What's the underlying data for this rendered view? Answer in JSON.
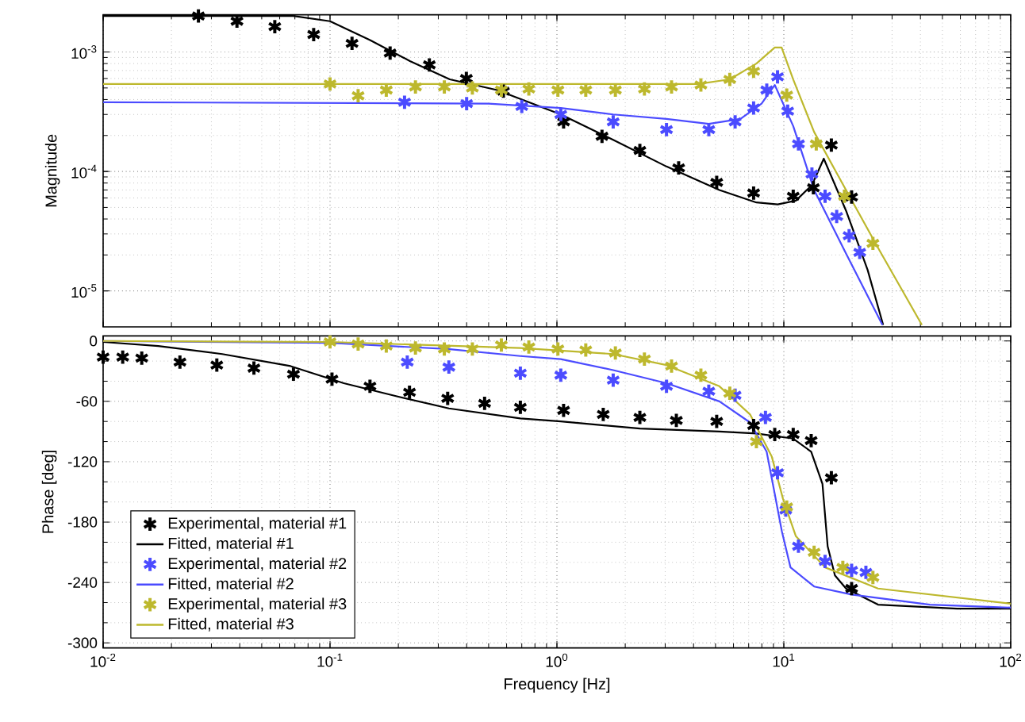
{
  "chart_data": [
    {
      "type": "line",
      "log": "xy",
      "xlim": [
        0.01,
        100
      ],
      "xticks": [
        {
          "value": 0.01,
          "label": null
        },
        {
          "value": 0.1,
          "label": null
        },
        {
          "value": 1,
          "label": null
        },
        {
          "value": 10,
          "label": null
        },
        {
          "value": 100,
          "label": null
        }
      ],
      "ylim": [
        5e-06,
        0.00205
      ],
      "yticks": [
        {
          "value": 1e-05,
          "label": "10$^{-5}$"
        },
        {
          "value": 0.0001,
          "label": "10$^{-4}$"
        },
        {
          "value": 0.001,
          "label": "10$^{-3}$"
        }
      ],
      "ylabel": "Magnitude",
      "grid": true,
      "tick_labels": "y",
      "line_style": "solid",
      "series": [
        {
          "type": "scatter",
          "marker": "cross",
          "color": "#000000",
          "x": [
            0.0263,
            0.0389,
            0.0571,
            0.0847,
            0.125,
            0.184,
            0.274,
            0.399,
            0.581,
            1.07,
            1.58,
            2.32,
            3.44,
            5.06,
            7.36,
            11.0,
            13.5,
            16.2,
            19.9
          ],
          "values": [
            0.002,
            0.00181,
            0.00163,
            0.0014,
            0.00118,
            0.00098,
            0.00078,
            0.0006,
            0.00047,
            0.00026,
            0.000197,
            0.00015,
            0.000107,
            8.1e-05,
            6.6e-05,
            6.2e-05,
            7.3e-05,
            0.000166,
            6.1e-05
          ]
        },
        {
          "type": "line",
          "marker": "none",
          "color": "#000000",
          "x": [
            0.01,
            0.069,
            0.1,
            0.15,
            0.225,
            0.337,
            0.545,
            1.04,
            1.77,
            3.04,
            5.2,
            7.57,
            9.4,
            11.3,
            13.3,
            15.0,
            18.8,
            23.4,
            27.4
          ],
          "values": [
            0.002,
            0.002,
            0.00181,
            0.00126,
            0.00084,
            0.00059,
            0.00048,
            0.0003,
            0.000184,
            0.00011,
            7e-05,
            5.5e-05,
            5.3e-05,
            5.7e-05,
            7.7e-05,
            0.000128,
            4.7e-05,
            1.5e-05,
            5.2e-06
          ]
        },
        {
          "type": "scatter",
          "marker": "cross",
          "color": "#4b4bff",
          "x": [
            0.213,
            0.4,
            0.7,
            1.04,
            1.77,
            3.04,
            4.67,
            6.1,
            7.36,
            8.41,
            9.38,
            10.4,
            11.6,
            13.3,
            15.2,
            17.1,
            19.4,
            21.6
          ],
          "values": [
            0.00038,
            0.00037,
            0.00035,
            0.0003,
            0.00026,
            0.000224,
            0.000224,
            0.00026,
            0.00034,
            0.00048,
            0.00062,
            0.00032,
            0.00017,
            9.5e-05,
            6.2e-05,
            4.2e-05,
            2.9e-05,
            2.1e-05
          ]
        },
        {
          "type": "line",
          "marker": "none",
          "color": "#4b4bff",
          "x": [
            0.01,
            0.5,
            1.04,
            1.77,
            3.04,
            4.67,
            6.44,
            7.98,
            9.12,
            11.0,
            13.6,
            18.8,
            27.2
          ],
          "values": [
            0.00038,
            0.00037,
            0.00034,
            0.0003,
            0.000275,
            0.00025,
            0.000275,
            0.00037,
            0.00053,
            0.00024,
            7e-05,
            2.06e-05,
            5.2e-06
          ]
        },
        {
          "type": "scatter",
          "marker": "cross",
          "color": "#bdb82d",
          "x": [
            0.1,
            0.133,
            0.177,
            0.238,
            0.319,
            0.424,
            0.569,
            0.752,
            1.01,
            1.34,
            1.81,
            2.43,
            3.2,
            4.31,
            5.78,
            7.36,
            10.3,
            13.9,
            18.5,
            24.7
          ],
          "values": [
            0.00054,
            0.00043,
            0.00048,
            0.00051,
            0.00051,
            0.0005,
            0.00048,
            0.00049,
            0.00048,
            0.00048,
            0.00048,
            0.00049,
            0.00051,
            0.00053,
            0.00059,
            0.00069,
            0.000435,
            0.00017,
            6.2e-05,
            2.5e-05
          ]
        },
        {
          "type": "line",
          "marker": "none",
          "color": "#bdb82d",
          "x": [
            0.01,
            4.19,
            5.78,
            7.57,
            9.12,
            9.78,
            11.0,
            13.6,
            18.8,
            26.0,
            40.6
          ],
          "values": [
            0.00054,
            0.00054,
            0.00059,
            0.0008,
            0.00109,
            0.00109,
            0.00059,
            0.000214,
            7e-05,
            2.3e-05,
            5.2e-06
          ]
        }
      ]
    },
    {
      "type": "line",
      "log": "x",
      "xlim": [
        0.01,
        100
      ],
      "xticks": [
        {
          "value": 0.01,
          "label": "10$^{-2}$"
        },
        {
          "value": 0.1,
          "label": "10$^{-1}$"
        },
        {
          "value": 1,
          "label": "10$^{0}$"
        },
        {
          "value": 10,
          "label": "10$^{1}$"
        },
        {
          "value": 100,
          "label": "10$^{2}$"
        }
      ],
      "ylim": [
        -305,
        5
      ],
      "yticks": [
        -300,
        -240,
        -180,
        -120,
        -60,
        0
      ],
      "xlabel": "Frequency [Hz]",
      "ylabel": "Phase [deg]",
      "grid": true,
      "legend": "bottom left",
      "line_style": "solid",
      "series": [
        {
          "type": "scatter",
          "marker": "cross",
          "name": "Experimental, material #1",
          "color": "#000000",
          "x": [
            0.01,
            0.0122,
            0.0148,
            0.0218,
            0.0317,
            0.0462,
            0.069,
            0.102,
            0.15,
            0.224,
            0.33,
            0.48,
            0.69,
            1.07,
            1.6,
            2.32,
            3.36,
            5.06,
            7.36,
            9.12,
            11.0,
            13.2,
            16.2,
            19.9
          ],
          "values": [
            -16,
            -16,
            -17,
            -21,
            -24,
            -27,
            -33,
            -38,
            -45,
            -51,
            -57,
            -62,
            -66,
            -69,
            -73,
            -76,
            -79,
            -80,
            -84,
            -93,
            -93,
            -99,
            -136,
            -246
          ]
        },
        {
          "type": "line",
          "marker": "none",
          "name": "Fitted, material #1",
          "color": "#000000",
          "x": [
            0.01,
            0.0175,
            0.0335,
            0.067,
            0.115,
            0.197,
            0.334,
            0.69,
            1.04,
            2.32,
            5.2,
            7.57,
            11.0,
            13.2,
            14.8,
            15.6,
            16.8,
            18.8,
            26,
            58,
            100
          ],
          "values": [
            -1,
            -5,
            -13,
            -25,
            -42,
            -55,
            -67,
            -77,
            -80,
            -87,
            -90,
            -92,
            -97,
            -110,
            -142,
            -204,
            -233,
            -246,
            -262,
            -266,
            -266
          ]
        },
        {
          "type": "scatter",
          "marker": "cross",
          "name": "Experimental, material #2",
          "color": "#4b4bff",
          "x": [
            0.219,
            0.334,
            0.69,
            1.04,
            1.77,
            3.04,
            4.67,
            6.1,
            8.3,
            9.38,
            10.2,
            11.6,
            15.2,
            19.9,
            23
          ],
          "values": [
            -21,
            -26,
            -32,
            -34,
            -39,
            -45,
            -50,
            -54,
            -76,
            -131,
            -168,
            -204,
            -219,
            -228,
            -230
          ]
        },
        {
          "type": "line",
          "marker": "none",
          "name": "Fitted, material #2",
          "color": "#4b4bff",
          "x": [
            0.01,
            0.1,
            0.33,
            0.69,
            1.04,
            1.77,
            3.04,
            5.2,
            7.1,
            8.4,
            9.12,
            9.8,
            10.7,
            13.6,
            19.9,
            44,
            100
          ],
          "values": [
            0,
            -2,
            -8,
            -15,
            -18,
            -29,
            -42,
            -60,
            -81,
            -110,
            -152,
            -189,
            -225,
            -244,
            -252,
            -262,
            -265
          ]
        },
        {
          "type": "scatter",
          "marker": "cross",
          "name": "Experimental, material #3",
          "color": "#bdb82d",
          "x": [
            0.1,
            0.133,
            0.177,
            0.238,
            0.319,
            0.424,
            0.569,
            0.752,
            1.01,
            1.34,
            1.81,
            2.43,
            3.2,
            4.31,
            5.78,
            7.57,
            10.3,
            13.6,
            18.2,
            24.7
          ],
          "values": [
            -1,
            -3,
            -5,
            -7,
            -8,
            -8,
            -4,
            -6,
            -8,
            -9,
            -12,
            -18,
            -25,
            -34,
            -52,
            -100,
            -165,
            -210,
            -225,
            -235
          ]
        },
        {
          "type": "line",
          "marker": "none",
          "name": "Fitted, material #3",
          "color": "#bdb82d",
          "x": [
            0.01,
            0.1,
            0.69,
            1.77,
            3.04,
            5.2,
            7.1,
            8.85,
            9.92,
            11.3,
            15.2,
            26,
            100
          ],
          "values": [
            0,
            -1,
            -7,
            -13,
            -24,
            -45,
            -73,
            -115,
            -157,
            -194,
            -225,
            -246,
            -261
          ]
        }
      ]
    }
  ]
}
